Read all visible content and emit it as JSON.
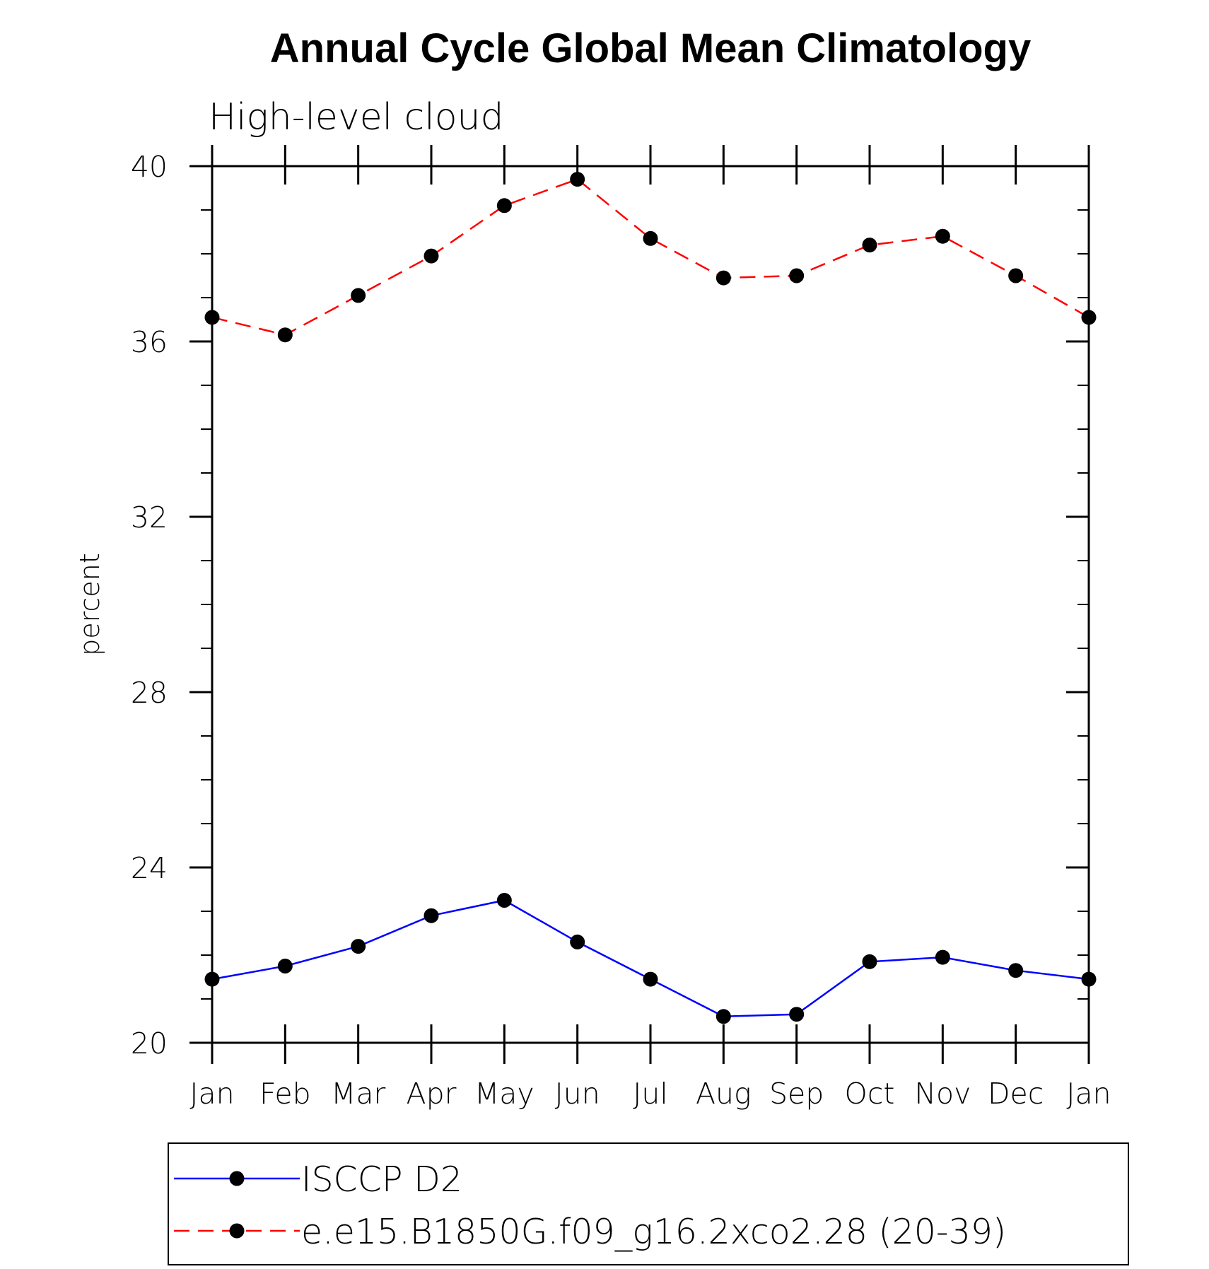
{
  "chart_data": {
    "type": "line",
    "title": "Annual Cycle Global Mean Climatology",
    "subtitle": "High-level cloud",
    "xlabel": "",
    "ylabel": "percent",
    "categories": [
      "Jan",
      "Feb",
      "Mar",
      "Apr",
      "May",
      "Jun",
      "Jul",
      "Aug",
      "Sep",
      "Oct",
      "Nov",
      "Dec",
      "Jan"
    ],
    "ylim": [
      20,
      40
    ],
    "yticks": [
      20,
      24,
      28,
      32,
      36,
      40
    ],
    "grid": false,
    "legend_position": "bottom",
    "series": [
      {
        "name": "ISCCP D2",
        "color": "#0000ff",
        "style": "solid",
        "marker": "circle",
        "values": [
          21.45,
          21.75,
          22.2,
          22.9,
          23.25,
          22.3,
          21.45,
          20.6,
          20.65,
          21.85,
          21.95,
          21.65,
          21.45
        ]
      },
      {
        "name": "e.e15.B1850G.f09_g16.2xco2.28 (20-39)",
        "color": "#ff0000",
        "style": "dashed",
        "marker": "circle",
        "values": [
          36.55,
          36.15,
          37.05,
          37.95,
          39.1,
          39.7,
          38.35,
          37.45,
          37.5,
          38.2,
          38.4,
          37.5,
          36.55
        ]
      }
    ]
  }
}
